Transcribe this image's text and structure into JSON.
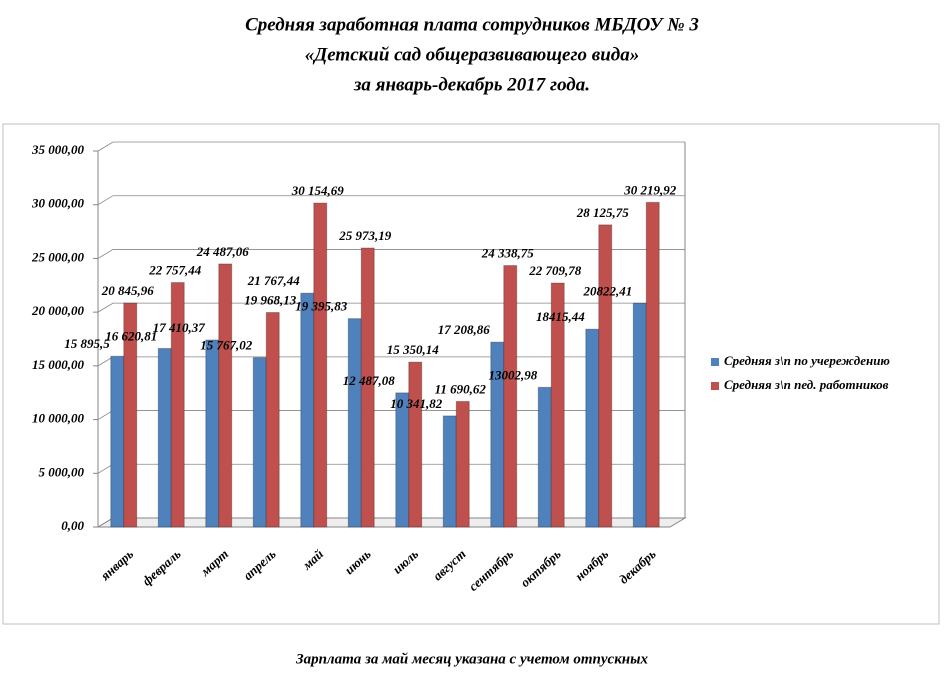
{
  "chart_data": {
    "type": "bar",
    "title": [
      "Средняя заработная плата сотрудников  МБДОУ № 3",
      "«Детский сад общеразвивающего  вида»",
      "за январь-декабрь  2017 года."
    ],
    "annotations": [
      "Зарплата за май месяц указана с учетом отпускных"
    ],
    "categories": [
      "январь",
      "февраль",
      "март",
      "апрель",
      "май",
      "июнь",
      "июль",
      "август",
      "сентябрь",
      "октябрь",
      "ноябрь",
      "декабрь"
    ],
    "series": [
      {
        "name": "Средняя з\\п по учереждению",
        "color": "#4f81bd",
        "values": [
          15895.5,
          16620.81,
          17410.37,
          15767.02,
          21767.44,
          19395.83,
          12487.08,
          10341.82,
          17208.86,
          13002.98,
          18415.44,
          20822.41
        ],
        "value_labels": [
          "15 895,5",
          "16 620,81",
          "17 410,37",
          "15 767,02",
          "21 767,44",
          "19 395,83",
          "12 487,08",
          "10 341,82",
          "17 208,86",
          "13002,98",
          "18415,44",
          "20822,41"
        ]
      },
      {
        "name": "Средняя з\\п пед. работников",
        "color": "#c0504d",
        "values": [
          20845.96,
          22757.44,
          24487.06,
          19968.13,
          30154.69,
          25973.19,
          15350.14,
          11690.62,
          24338.75,
          22709.78,
          28125.75,
          30219.92
        ],
        "value_labels": [
          "20 845,96",
          "22 757,44",
          "24 487,06",
          "19 968,13",
          "30  154,69",
          "25 973,19",
          "15 350,14",
          "11 690,62",
          "24 338,75",
          "22 709,78",
          "28 125,75",
          "30 219,92"
        ]
      }
    ],
    "ylim": [
      0,
      35000
    ],
    "yticks": [
      {
        "value": 0,
        "label": "0,00"
      },
      {
        "value": 5000,
        "label": "5 000,00"
      },
      {
        "value": 10000,
        "label": "10 000,00"
      },
      {
        "value": 15000,
        "label": "15 000,00"
      },
      {
        "value": 20000,
        "label": "20 000,00"
      },
      {
        "value": 25000,
        "label": "25 000,00"
      },
      {
        "value": 30000,
        "label": "30 000,00"
      },
      {
        "value": 35000,
        "label": "35 000,00"
      }
    ],
    "grid": true,
    "legend": "right"
  }
}
